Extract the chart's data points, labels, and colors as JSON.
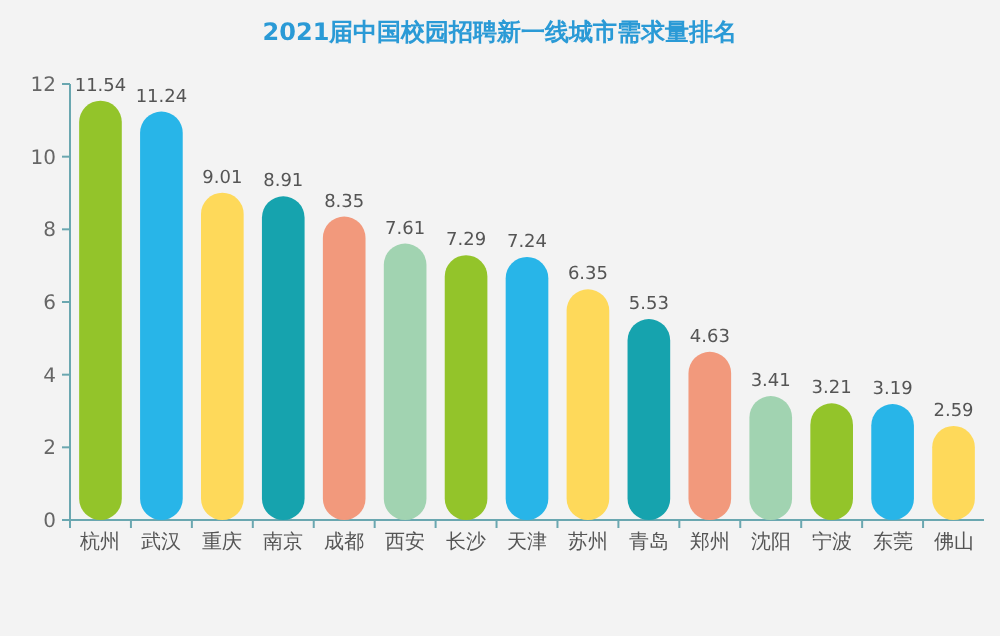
{
  "chart_data": {
    "type": "bar",
    "title": "2021届中国校园招聘新一线城市需求量排名",
    "categories": [
      "杭州",
      "武汉",
      "重庆",
      "南京",
      "成都",
      "西安",
      "长沙",
      "天津",
      "苏州",
      "青岛",
      "郑州",
      "沈阳",
      "宁波",
      "东莞",
      "佛山"
    ],
    "values": [
      11.54,
      11.24,
      9.01,
      8.91,
      8.35,
      7.61,
      7.29,
      7.24,
      6.35,
      5.53,
      4.63,
      3.41,
      3.21,
      3.19,
      2.59
    ],
    "colors": [
      "#93c42a",
      "#28b5e8",
      "#fed95a",
      "#16a3ae",
      "#f2997c",
      "#a1d3b1",
      "#93c42a",
      "#28b5e8",
      "#fed95a",
      "#16a3ae",
      "#f2997c",
      "#a1d3b1",
      "#93c42a",
      "#28b5e8",
      "#fed95a"
    ],
    "ylim": [
      0,
      12
    ],
    "yticks": [
      0,
      2,
      4,
      6,
      8,
      10,
      12
    ],
    "data_labels": true,
    "grid": false
  }
}
